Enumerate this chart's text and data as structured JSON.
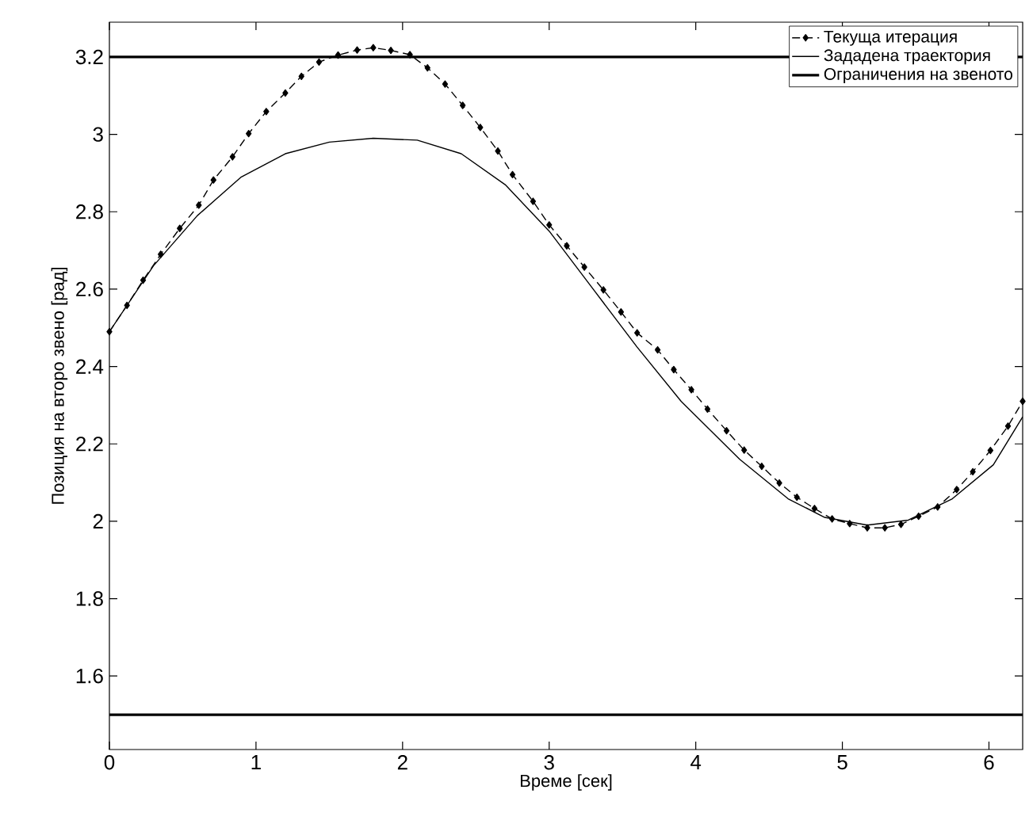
{
  "chart_data": {
    "type": "line",
    "xlabel": "Време [сек]",
    "ylabel": "Позиция на второ звено [рад]",
    "xlim": [
      0,
      6.23
    ],
    "ylim": [
      1.41,
      3.29
    ],
    "xticks": [
      0,
      1,
      2,
      3,
      4,
      5,
      6
    ],
    "yticks": [
      1.6,
      1.8,
      2,
      2.2,
      2.4,
      2.6,
      2.8,
      3,
      3.2
    ],
    "grid": false,
    "legend": "top right",
    "series": [
      {
        "name": "Текуща итерация",
        "color": "#000000",
        "marker": "diamond",
        "line_style": "dashed",
        "x": [
          0,
          0.12,
          0.23,
          0.35,
          0.48,
          0.61,
          0.71,
          0.84,
          0.95,
          1.07,
          1.2,
          1.31,
          1.43,
          1.56,
          1.69,
          1.8,
          1.92,
          2.05,
          2.17,
          2.29,
          2.41,
          2.53,
          2.65,
          2.75,
          2.89,
          3.0,
          3.12,
          3.24,
          3.37,
          3.49,
          3.6,
          3.74,
          3.85,
          3.97,
          4.08,
          4.21,
          4.33,
          4.45,
          4.57,
          4.69,
          4.81,
          4.93,
          5.05,
          5.17,
          5.29,
          5.4,
          5.52,
          5.65,
          5.78,
          5.89,
          6.01,
          6.13,
          6.23
        ],
        "values": [
          2.49,
          2.558,
          2.623,
          2.69,
          2.757,
          2.817,
          2.882,
          2.942,
          3.002,
          3.059,
          3.107,
          3.15,
          3.187,
          3.205,
          3.218,
          3.224,
          3.217,
          3.206,
          3.172,
          3.13,
          3.075,
          3.018,
          2.957,
          2.896,
          2.827,
          2.766,
          2.712,
          2.657,
          2.598,
          2.541,
          2.487,
          2.443,
          2.392,
          2.34,
          2.29,
          2.234,
          2.184,
          2.142,
          2.099,
          2.062,
          2.033,
          2.006,
          1.994,
          1.983,
          1.983,
          1.992,
          2.013,
          2.037,
          2.082,
          2.128,
          2.183,
          2.246,
          2.31
        ]
      },
      {
        "name": "Зададена траектория",
        "color": "#000000",
        "marker": "none",
        "line_style": "solid",
        "x": [
          0,
          0.3,
          0.6,
          0.9,
          1.2,
          1.5,
          1.8,
          2.1,
          2.4,
          2.7,
          3.0,
          3.3,
          3.6,
          3.9,
          4.3,
          4.63,
          4.88,
          5.17,
          5.45,
          5.75,
          6.03,
          6.23
        ],
        "values": [
          2.49,
          2.66,
          2.79,
          2.89,
          2.95,
          2.98,
          2.99,
          2.985,
          2.95,
          2.87,
          2.75,
          2.6,
          2.45,
          2.31,
          2.16,
          2.058,
          2.01,
          1.99,
          2.003,
          2.058,
          2.146,
          2.27
        ]
      }
    ],
    "ref_lines": [
      {
        "axis": "y",
        "value": 3.2,
        "label": "Ограничения на звеното",
        "color": "#000000",
        "line_style": "solid"
      },
      {
        "axis": "y",
        "value": 1.5,
        "color": "#000000",
        "line_style": "solid"
      }
    ]
  }
}
